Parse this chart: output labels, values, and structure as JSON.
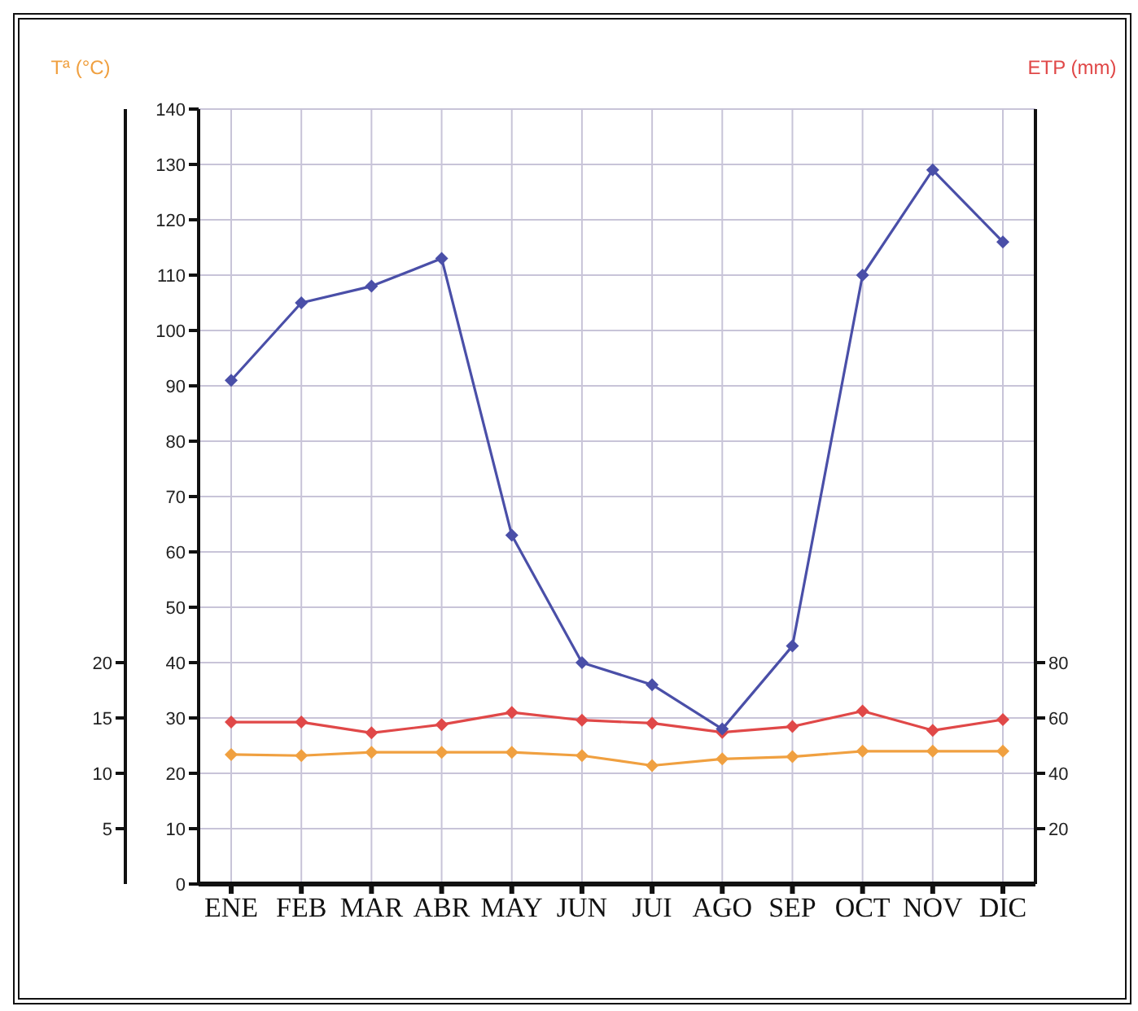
{
  "chart_data": {
    "type": "line",
    "categories": [
      "ENE",
      "FEB",
      "MAR",
      "ABR",
      "MAY",
      "JUN",
      "JUI",
      "AGO",
      "SEP",
      "OCT",
      "NOV",
      "DIC"
    ],
    "series": [
      {
        "color": "#4a4fa8",
        "values": [
          91,
          105,
          108,
          113,
          63,
          40,
          36,
          28,
          43,
          110,
          129,
          116
        ]
      },
      {
        "color": "#e04848",
        "axis": "y3",
        "values": [
          58.5,
          58.5,
          54.6,
          57.6,
          62,
          59.2,
          58.1,
          54.8,
          56.9,
          62.5,
          55.5,
          59.4
        ]
      },
      {
        "color": "#f0a040",
        "axis": "y2",
        "values": [
          11.7,
          11.6,
          11.9,
          11.9,
          11.9,
          11.6,
          10.7,
          11.3,
          11.5,
          12,
          12,
          12
        ]
      }
    ],
    "ylim": [
      0,
      140
    ],
    "yticks": [
      0,
      10,
      20,
      30,
      40,
      50,
      60,
      70,
      80,
      90,
      100,
      110,
      120,
      130,
      140
    ],
    "y2label": "Tª (°C)",
    "y2lim": [
      0,
      70
    ],
    "y2ticks": [
      5,
      10,
      15,
      20
    ],
    "y3label": "ETP (mm)",
    "y3lim": [
      0,
      280
    ],
    "y3ticks": [
      20,
      40,
      60,
      80
    ],
    "grid": true,
    "marker": "diamond",
    "line_style": "solid"
  }
}
